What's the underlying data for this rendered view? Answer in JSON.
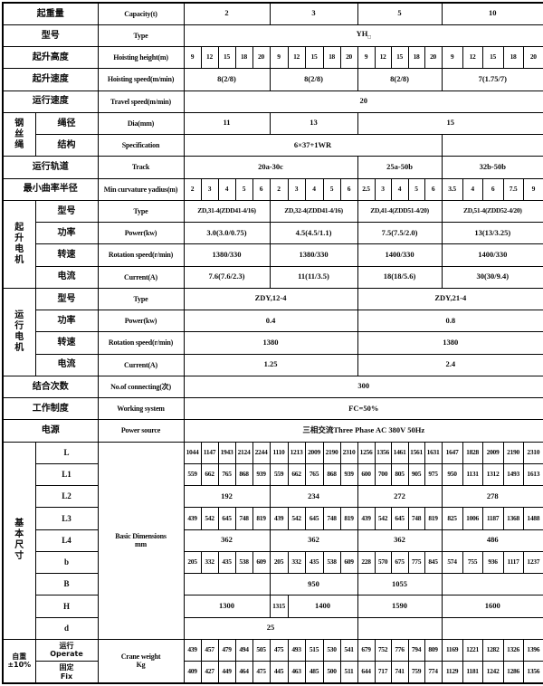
{
  "colors": {
    "border": "#000000",
    "background": "#ffffff",
    "text": "#0a0a0a"
  },
  "table": {
    "rows": [
      {
        "id": "capacity",
        "cells": [
          {
            "t": "起重量",
            "c": 2,
            "cls": "zh",
            "name": "label-capacity-zh"
          },
          {
            "t": "Capacity(t)",
            "cls": "en",
            "name": "label-capacity-en"
          },
          {
            "t": "2",
            "c": 5,
            "cls": "v"
          },
          {
            "t": "3",
            "c": 5,
            "cls": "v"
          },
          {
            "t": "5",
            "c": 5,
            "cls": "v"
          },
          {
            "t": "10",
            "c": 5,
            "cls": "v"
          }
        ]
      },
      {
        "id": "type",
        "cells": [
          {
            "t": "型号",
            "c": 2,
            "cls": "zh",
            "name": "label-type-zh"
          },
          {
            "t": "Type",
            "cls": "en",
            "name": "label-type-en"
          },
          {
            "t": "YH",
            "sub": "□",
            "c": 20,
            "cls": "v",
            "name": "value-model-type"
          }
        ]
      },
      {
        "id": "hoisting-height",
        "dcls": "n",
        "cells": [
          {
            "t": "起升高度",
            "c": 2,
            "cls": "zh"
          },
          {
            "t": "Hoisting height(m)",
            "cls": "en"
          },
          "9",
          "12",
          "15",
          "18",
          "20",
          "9",
          "12",
          "15",
          "18",
          "20",
          "9",
          "12",
          "15",
          "18",
          "20",
          "9",
          "12",
          "15",
          "18",
          "20"
        ]
      },
      {
        "id": "hoisting-speed",
        "dcls": "v",
        "cells": [
          {
            "t": "起升速度",
            "c": 2,
            "cls": "zh"
          },
          {
            "t": "Hoisting speed(m/min)",
            "cls": "en"
          },
          {
            "t": "8(2/8)",
            "c": 5
          },
          {
            "t": "8(2/8)",
            "c": 5
          },
          {
            "t": "8(2/8)",
            "c": 5
          },
          {
            "t": "7(1.75/7)",
            "c": 5
          }
        ]
      },
      {
        "id": "travel-speed",
        "cells": [
          {
            "t": "运行速度",
            "c": 2,
            "cls": "zh"
          },
          {
            "t": "Travel speed(m/min)",
            "cls": "en"
          },
          {
            "t": "20",
            "c": 20,
            "cls": "v"
          }
        ]
      },
      {
        "id": "rope-dia",
        "cells": [
          {
            "t": "钢丝绳",
            "r": 2,
            "cls": "g",
            "name": "group-wire-rope"
          },
          {
            "t": "绳径",
            "cls": "zh"
          },
          {
            "t": "Dia(mm)",
            "cls": "en"
          },
          {
            "t": "11",
            "c": 5,
            "cls": "v"
          },
          {
            "t": "13",
            "c": 5,
            "cls": "v"
          },
          {
            "t": "15",
            "c": 10,
            "cls": "v"
          }
        ]
      },
      {
        "id": "rope-spec",
        "cells": [
          {
            "t": "结构",
            "cls": "zh"
          },
          {
            "t": "Specification",
            "cls": "en"
          },
          {
            "t": "6×37+1WR",
            "c": 15,
            "cls": "v"
          },
          {
            "t": "",
            "c": 5,
            "cls": "v"
          }
        ]
      },
      {
        "id": "track",
        "dcls": "v",
        "cells": [
          {
            "t": "运行轨道",
            "c": 2,
            "cls": "zh"
          },
          {
            "t": "Track",
            "cls": "en"
          },
          {
            "t": "20a-30c",
            "c": 10
          },
          {
            "t": "25a-50b",
            "c": 5
          },
          {
            "t": "32b-50b",
            "c": 5
          }
        ]
      },
      {
        "id": "min-radius",
        "dcls": "n",
        "cells": [
          {
            "t": "最小曲率半径",
            "c": 2,
            "cls": "zh"
          },
          {
            "t": "Min curvature yadius(m)",
            "cls": "en"
          },
          "2",
          "3",
          "4",
          "5",
          "6",
          "2",
          "3",
          "4",
          "5",
          "6",
          "2.5",
          "3",
          "4",
          "5",
          "6",
          "3.5",
          "4",
          "6",
          "7.5",
          "9"
        ]
      },
      {
        "id": "hmotor-type",
        "dcls": "n",
        "cells": [
          {
            "t": "起升电机",
            "r": 4,
            "cls": "g",
            "name": "group-hoisting-motor"
          },
          {
            "t": "型号",
            "cls": "zh"
          },
          {
            "t": "Type",
            "cls": "en"
          },
          {
            "t": "ZD,31-4(ZDD41-4/16)",
            "c": 5
          },
          {
            "t": "ZD,32-4(ZDD41-4/16)",
            "c": 5
          },
          {
            "t": "ZD,41-4(ZDD51-4/20)",
            "c": 5
          },
          {
            "t": "ZD,51-4(ZDD52-4/20)",
            "c": 5
          }
        ]
      },
      {
        "id": "hmotor-power",
        "dcls": "v",
        "cells": [
          {
            "t": "功率",
            "cls": "zh"
          },
          {
            "t": "Power(kw)",
            "cls": "en"
          },
          {
            "t": "3.0(3.0/0.75)",
            "c": 5
          },
          {
            "t": "4.5(4.5/1.1)",
            "c": 5
          },
          {
            "t": "7.5(7.5/2.0)",
            "c": 5
          },
          {
            "t": "13(13/3.25)",
            "c": 5
          }
        ]
      },
      {
        "id": "hmotor-speed",
        "dcls": "v",
        "cells": [
          {
            "t": "转速",
            "cls": "zh"
          },
          {
            "t": "Rotation speed(r/min)",
            "cls": "en"
          },
          {
            "t": "1380/330",
            "c": 5
          },
          {
            "t": "1380/330",
            "c": 5
          },
          {
            "t": "1400/330",
            "c": 5
          },
          {
            "t": "1400/330",
            "c": 5
          }
        ]
      },
      {
        "id": "hmotor-current",
        "dcls": "v",
        "cells": [
          {
            "t": "电流",
            "cls": "zh"
          },
          {
            "t": "Current(A)",
            "cls": "en"
          },
          {
            "t": "7.6(7.6/2.3)",
            "c": 5
          },
          {
            "t": "11(11/3.5)",
            "c": 5
          },
          {
            "t": "18(18/5.6)",
            "c": 5
          },
          {
            "t": "30(30/9.4)",
            "c": 5
          }
        ]
      },
      {
        "id": "tmotor-type",
        "dcls": "v",
        "cells": [
          {
            "t": "运行电机",
            "r": 4,
            "cls": "g",
            "name": "group-travel-motor"
          },
          {
            "t": "型号",
            "cls": "zh"
          },
          {
            "t": "Type",
            "cls": "en"
          },
          {
            "t": "ZDY,12-4",
            "c": 10
          },
          {
            "t": "ZDY,21-4",
            "c": 10
          }
        ]
      },
      {
        "id": "tmotor-power",
        "dcls": "v",
        "cells": [
          {
            "t": "功率",
            "cls": "zh"
          },
          {
            "t": "Power(kw)",
            "cls": "en"
          },
          {
            "t": "0.4",
            "c": 10
          },
          {
            "t": "0.8",
            "c": 10
          }
        ]
      },
      {
        "id": "tmotor-speed",
        "dcls": "v",
        "cells": [
          {
            "t": "转速",
            "cls": "zh"
          },
          {
            "t": "Rotation speed(r/min)",
            "cls": "en"
          },
          {
            "t": "1380",
            "c": 10
          },
          {
            "t": "1380",
            "c": 10
          }
        ]
      },
      {
        "id": "tmotor-current",
        "dcls": "v",
        "cells": [
          {
            "t": "电流",
            "cls": "zh"
          },
          {
            "t": "Current(A)",
            "cls": "en"
          },
          {
            "t": "1.25",
            "c": 10
          },
          {
            "t": "2.4",
            "c": 10
          }
        ]
      },
      {
        "id": "connecting",
        "cells": [
          {
            "t": "结合次数",
            "c": 2,
            "cls": "zh"
          },
          {
            "t": "No.of connecting(次)",
            "cls": "en"
          },
          {
            "t": "300",
            "c": 20,
            "cls": "v"
          }
        ]
      },
      {
        "id": "working-system",
        "cells": [
          {
            "t": "工作制度",
            "c": 2,
            "cls": "zh"
          },
          {
            "t": "Working system",
            "cls": "en"
          },
          {
            "t": "FC=50%",
            "c": 20,
            "cls": "v"
          }
        ]
      },
      {
        "id": "power-source",
        "cells": [
          {
            "t": "电源",
            "c": 2,
            "cls": "zh"
          },
          {
            "t": "Power source",
            "cls": "en"
          },
          {
            "t": "三相交流Three Phase AC 380V 50Hz",
            "c": 20,
            "cls": "v"
          }
        ]
      },
      {
        "id": "dim-L",
        "dcls": "n",
        "cells": [
          {
            "t": "基本尺寸",
            "r": 9,
            "cls": "g",
            "name": "group-basic-dimensions"
          },
          {
            "t": "L",
            "cls": "dim"
          },
          {
            "lines": [
              "Basic Dimensions",
              "mm"
            ],
            "r": 9,
            "cls": "en",
            "name": "label-basic-dimensions-en"
          },
          "1044",
          "1147",
          "1943",
          "2124",
          "2244",
          "1110",
          "1213",
          "2009",
          "2190",
          "2310",
          "1256",
          "1356",
          "1461",
          "1561",
          "1631",
          "1647",
          "1828",
          "2009",
          "2190",
          "2310"
        ]
      },
      {
        "id": "dim-L1",
        "dcls": "n",
        "cells": [
          {
            "t": "L1",
            "cls": "dim"
          },
          "559",
          "662",
          "765",
          "868",
          "939",
          "559",
          "662",
          "765",
          "868",
          "939",
          "600",
          "700",
          "805",
          "905",
          "975",
          "950",
          "1131",
          "1312",
          "1493",
          "1613"
        ]
      },
      {
        "id": "dim-L2",
        "dcls": "v",
        "cells": [
          {
            "t": "L2",
            "cls": "dim"
          },
          {
            "t": "192",
            "c": 5
          },
          {
            "t": "234",
            "c": 5
          },
          {
            "t": "272",
            "c": 5
          },
          {
            "t": "278",
            "c": 5
          }
        ]
      },
      {
        "id": "dim-L3",
        "dcls": "n",
        "cells": [
          {
            "t": "L3",
            "cls": "dim"
          },
          "439",
          "542",
          "645",
          "748",
          "819",
          "439",
          "542",
          "645",
          "748",
          "819",
          "439",
          "542",
          "645",
          "748",
          "819",
          "825",
          "1006",
          "1187",
          "1368",
          "1488"
        ]
      },
      {
        "id": "dim-L4",
        "dcls": "v",
        "cells": [
          {
            "t": "L4",
            "cls": "dim"
          },
          {
            "t": "362",
            "c": 5
          },
          {
            "t": "362",
            "c": 5
          },
          {
            "t": "362",
            "c": 5
          },
          {
            "t": "486",
            "c": 5
          }
        ]
      },
      {
        "id": "dim-b",
        "dcls": "n",
        "cells": [
          {
            "t": "b",
            "cls": "dim"
          },
          "205",
          "332",
          "435",
          "538",
          "609",
          "205",
          "332",
          "435",
          "538",
          "609",
          "228",
          "570",
          "675",
          "775",
          "845",
          "574",
          "755",
          "936",
          "1117",
          "1237"
        ]
      },
      {
        "id": "dim-B",
        "dcls": "v",
        "cells": [
          {
            "t": "B",
            "cls": "dim"
          },
          {
            "t": "",
            "c": 5
          },
          {
            "t": "950",
            "c": 5
          },
          {
            "t": "1055",
            "c": 5
          },
          {
            "t": "",
            "c": 5
          }
        ]
      },
      {
        "id": "dim-H",
        "dcls": "v",
        "cells": [
          {
            "t": "H",
            "cls": "dim"
          },
          {
            "t": "1300",
            "c": 5
          },
          {
            "t": "1315",
            "c": 1,
            "cls": "n"
          },
          {
            "t": "1400",
            "c": 4
          },
          {
            "t": "1590",
            "c": 5
          },
          {
            "t": "1600",
            "c": 5
          }
        ]
      },
      {
        "id": "dim-d",
        "dcls": "v",
        "cells": [
          {
            "t": "d",
            "cls": "dim"
          },
          {
            "t": "25",
            "c": 10
          },
          {
            "t": "",
            "c": 5
          },
          {
            "t": "",
            "c": 5
          }
        ]
      },
      {
        "id": "weight-operate",
        "dcls": "n",
        "cells": [
          {
            "lines": [
              "自重",
              "±10%"
            ],
            "r": 2,
            "cls": "g2",
            "name": "group-crane-weight"
          },
          {
            "lines": [
              "运行",
              "Operate"
            ],
            "cls": "zh2",
            "name": "label-operate"
          },
          {
            "lines": [
              "Crane weight",
              "Kg"
            ],
            "r": 2,
            "cls": "en",
            "name": "label-crane-weight-en"
          },
          "439",
          "457",
          "479",
          "494",
          "505",
          "475",
          "493",
          "515",
          "530",
          "541",
          "679",
          "752",
          "776",
          "794",
          "809",
          "1169",
          "1221",
          "1282",
          "1326",
          "1396"
        ]
      },
      {
        "id": "weight-fix",
        "dcls": "n",
        "cells": [
          {
            "lines": [
              "固定",
              "Fix"
            ],
            "cls": "zh2",
            "name": "label-fix"
          },
          "409",
          "427",
          "449",
          "464",
          "475",
          "445",
          "463",
          "485",
          "500",
          "511",
          "644",
          "717",
          "741",
          "759",
          "774",
          "1129",
          "1181",
          "1242",
          "1286",
          "1356"
        ]
      }
    ]
  }
}
